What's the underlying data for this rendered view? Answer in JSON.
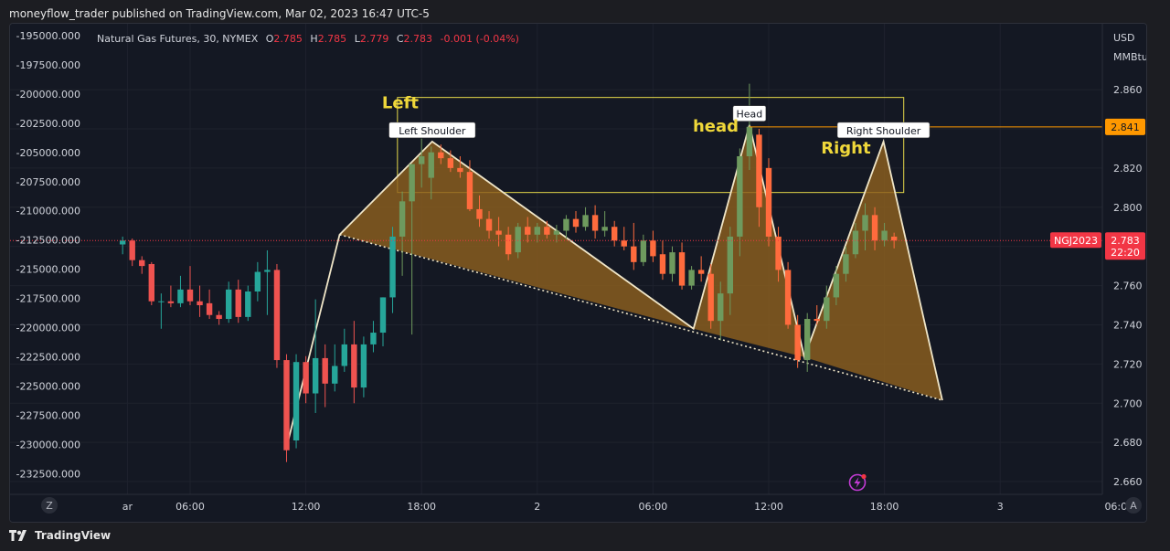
{
  "header": {
    "published": "moneyflow_trader published on TradingView.com, Mar 02, 2023 16:47 UTC-5"
  },
  "footer": {
    "brand": "TradingView",
    "brand_icon": "tradingview-logo-icon"
  },
  "legend": {
    "symbol": "Natural Gas Futures, 30, NYMEX",
    "O_label": "O",
    "O": "2.785",
    "H_label": "H",
    "H": "2.785",
    "L_label": "L",
    "L": "2.779",
    "C_label": "C",
    "C": "2.783",
    "change": "-0.001 (-0.04%)"
  },
  "chart_data": {
    "type": "candlestick",
    "right_axis": {
      "currency": "USD",
      "unit": "MMBtu",
      "ticks": [
        "2.860",
        "2.840",
        "2.820",
        "2.800",
        "2.780",
        "2.760",
        "2.740",
        "2.720",
        "2.700",
        "2.680",
        "2.660"
      ],
      "range": [
        2.6535,
        2.8936
      ]
    },
    "left_axis": {
      "ticks": [
        "-195000.000",
        "-197500.000",
        "-200000.000",
        "-202500.000",
        "-205000.000",
        "-207500.000",
        "-210000.000",
        "-212500.000",
        "-215000.000",
        "-217500.000",
        "-220000.000",
        "-222500.000",
        "-225000.000",
        "-227500.000",
        "-230000.000",
        "-232500.000"
      ]
    },
    "x_axis": {
      "ticks": [
        {
          "label": "ar",
          "t": -3.25
        },
        {
          "label": "06:00",
          "t": 0
        },
        {
          "label": "12:00",
          "t": 6
        },
        {
          "label": "18:00",
          "t": 12
        },
        {
          "label": "2",
          "t": 18
        },
        {
          "label": "06:00",
          "t": 24
        },
        {
          "label": "12:00",
          "t": 30
        },
        {
          "label": "18:00",
          "t": 36
        },
        {
          "label": "3",
          "t": 42
        },
        {
          "label": "06:0",
          "t": 48
        }
      ]
    },
    "candles": [
      {
        "t": -3.5,
        "o": 2.781,
        "h": 2.785,
        "l": 2.776,
        "c": 2.783
      },
      {
        "t": -3.0,
        "o": 2.783,
        "h": 2.784,
        "l": 2.77,
        "c": 2.773
      },
      {
        "t": -2.5,
        "o": 2.773,
        "h": 2.775,
        "l": 2.766,
        "c": 2.77
      },
      {
        "t": -2.0,
        "o": 2.771,
        "h": 2.772,
        "l": 2.75,
        "c": 2.752
      },
      {
        "t": -1.5,
        "o": 2.752,
        "h": 2.756,
        "l": 2.738,
        "c": 2.752
      },
      {
        "t": -1.0,
        "o": 2.752,
        "h": 2.76,
        "l": 2.749,
        "c": 2.751
      },
      {
        "t": -0.5,
        "o": 2.751,
        "h": 2.765,
        "l": 2.749,
        "c": 2.758
      },
      {
        "t": 0.0,
        "o": 2.758,
        "h": 2.77,
        "l": 2.75,
        "c": 2.752
      },
      {
        "t": 0.5,
        "o": 2.752,
        "h": 2.76,
        "l": 2.744,
        "c": 2.75
      },
      {
        "t": 1.0,
        "o": 2.751,
        "h": 2.758,
        "l": 2.743,
        "c": 2.745
      },
      {
        "t": 1.5,
        "o": 2.745,
        "h": 2.747,
        "l": 2.74,
        "c": 2.743
      },
      {
        "t": 2.0,
        "o": 2.743,
        "h": 2.762,
        "l": 2.741,
        "c": 2.758
      },
      {
        "t": 2.5,
        "o": 2.758,
        "h": 2.763,
        "l": 2.741,
        "c": 2.744
      },
      {
        "t": 3.0,
        "o": 2.744,
        "h": 2.76,
        "l": 2.742,
        "c": 2.757
      },
      {
        "t": 3.5,
        "o": 2.757,
        "h": 2.772,
        "l": 2.752,
        "c": 2.767
      },
      {
        "t": 4.0,
        "o": 2.767,
        "h": 2.778,
        "l": 2.745,
        "c": 2.768
      },
      {
        "t": 4.5,
        "o": 2.768,
        "h": 2.771,
        "l": 2.718,
        "c": 2.722
      },
      {
        "t": 5.0,
        "o": 2.722,
        "h": 2.725,
        "l": 2.67,
        "c": 2.676
      },
      {
        "t": 5.5,
        "o": 2.681,
        "h": 2.725,
        "l": 2.677,
        "c": 2.721
      },
      {
        "t": 6.0,
        "o": 2.721,
        "h": 2.724,
        "l": 2.7,
        "c": 2.705
      },
      {
        "t": 6.5,
        "o": 2.705,
        "h": 2.753,
        "l": 2.695,
        "c": 2.723
      },
      {
        "t": 7.0,
        "o": 2.723,
        "h": 2.73,
        "l": 2.698,
        "c": 2.71
      },
      {
        "t": 7.5,
        "o": 2.71,
        "h": 2.73,
        "l": 2.706,
        "c": 2.719
      },
      {
        "t": 8.0,
        "o": 2.719,
        "h": 2.738,
        "l": 2.716,
        "c": 2.73
      },
      {
        "t": 8.5,
        "o": 2.73,
        "h": 2.742,
        "l": 2.7,
        "c": 2.708
      },
      {
        "t": 9.0,
        "o": 2.708,
        "h": 2.734,
        "l": 2.703,
        "c": 2.73
      },
      {
        "t": 9.5,
        "o": 2.73,
        "h": 2.742,
        "l": 2.726,
        "c": 2.736
      },
      {
        "t": 10.0,
        "o": 2.736,
        "h": 2.754,
        "l": 2.729,
        "c": 2.754
      },
      {
        "t": 10.5,
        "o": 2.754,
        "h": 2.79,
        "l": 2.746,
        "c": 2.785
      },
      {
        "t": 11.0,
        "o": 2.785,
        "h": 2.808,
        "l": 2.765,
        "c": 2.803
      },
      {
        "t": 11.5,
        "o": 2.803,
        "h": 2.822,
        "l": 2.735,
        "c": 2.822
      },
      {
        "t": 12.0,
        "o": 2.822,
        "h": 2.835,
        "l": 2.81,
        "c": 2.826
      },
      {
        "t": 12.5,
        "o": 2.815,
        "h": 2.831,
        "l": 2.804,
        "c": 2.828
      },
      {
        "t": 13.0,
        "o": 2.828,
        "h": 2.832,
        "l": 2.822,
        "c": 2.825
      },
      {
        "t": 13.5,
        "o": 2.825,
        "h": 2.829,
        "l": 2.818,
        "c": 2.82
      },
      {
        "t": 14.0,
        "o": 2.82,
        "h": 2.826,
        "l": 2.815,
        "c": 2.818
      },
      {
        "t": 14.5,
        "o": 2.818,
        "h": 2.824,
        "l": 2.798,
        "c": 2.799
      },
      {
        "t": 15.0,
        "o": 2.799,
        "h": 2.806,
        "l": 2.79,
        "c": 2.794
      },
      {
        "t": 15.5,
        "o": 2.794,
        "h": 2.798,
        "l": 2.784,
        "c": 2.788
      },
      {
        "t": 16.0,
        "o": 2.788,
        "h": 2.795,
        "l": 2.78,
        "c": 2.786
      },
      {
        "t": 16.5,
        "o": 2.786,
        "h": 2.79,
        "l": 2.773,
        "c": 2.776
      },
      {
        "t": 17.0,
        "o": 2.777,
        "h": 2.792,
        "l": 2.774,
        "c": 2.79
      },
      {
        "t": 17.5,
        "o": 2.79,
        "h": 2.795,
        "l": 2.782,
        "c": 2.786
      },
      {
        "t": 18.0,
        "o": 2.786,
        "h": 2.792,
        "l": 2.782,
        "c": 2.79
      },
      {
        "t": 18.5,
        "o": 2.79,
        "h": 2.793,
        "l": 2.784,
        "c": 2.786
      },
      {
        "t": 19.0,
        "o": 2.786,
        "h": 2.791,
        "l": 2.782,
        "c": 2.788
      },
      {
        "t": 19.5,
        "o": 2.788,
        "h": 2.796,
        "l": 2.784,
        "c": 2.794
      },
      {
        "t": 20.0,
        "o": 2.794,
        "h": 2.798,
        "l": 2.787,
        "c": 2.79
      },
      {
        "t": 20.5,
        "o": 2.79,
        "h": 2.8,
        "l": 2.788,
        "c": 2.796
      },
      {
        "t": 21.0,
        "o": 2.796,
        "h": 2.801,
        "l": 2.784,
        "c": 2.788
      },
      {
        "t": 21.5,
        "o": 2.788,
        "h": 2.798,
        "l": 2.785,
        "c": 2.79
      },
      {
        "t": 22.0,
        "o": 2.79,
        "h": 2.793,
        "l": 2.78,
        "c": 2.783
      },
      {
        "t": 22.5,
        "o": 2.783,
        "h": 2.79,
        "l": 2.778,
        "c": 2.78
      },
      {
        "t": 23.0,
        "o": 2.78,
        "h": 2.792,
        "l": 2.768,
        "c": 2.772
      },
      {
        "t": 23.5,
        "o": 2.772,
        "h": 2.786,
        "l": 2.77,
        "c": 2.783
      },
      {
        "t": 24.0,
        "o": 2.783,
        "h": 2.788,
        "l": 2.772,
        "c": 2.775
      },
      {
        "t": 24.5,
        "o": 2.776,
        "h": 2.783,
        "l": 2.763,
        "c": 2.766
      },
      {
        "t": 25.0,
        "o": 2.766,
        "h": 2.78,
        "l": 2.762,
        "c": 2.777
      },
      {
        "t": 25.5,
        "o": 2.777,
        "h": 2.782,
        "l": 2.758,
        "c": 2.76
      },
      {
        "t": 26.0,
        "o": 2.76,
        "h": 2.77,
        "l": 2.758,
        "c": 2.768
      },
      {
        "t": 26.5,
        "o": 2.768,
        "h": 2.775,
        "l": 2.762,
        "c": 2.766
      },
      {
        "t": 27.0,
        "o": 2.766,
        "h": 2.771,
        "l": 2.738,
        "c": 2.742
      },
      {
        "t": 27.5,
        "o": 2.742,
        "h": 2.762,
        "l": 2.732,
        "c": 2.756
      },
      {
        "t": 28.0,
        "o": 2.756,
        "h": 2.79,
        "l": 2.745,
        "c": 2.785
      },
      {
        "t": 28.5,
        "o": 2.785,
        "h": 2.83,
        "l": 2.775,
        "c": 2.826
      },
      {
        "t": 29.0,
        "o": 2.826,
        "h": 2.863,
        "l": 2.819,
        "c": 2.841
      },
      {
        "t": 29.5,
        "o": 2.837,
        "h": 2.84,
        "l": 2.79,
        "c": 2.8
      },
      {
        "t": 30.0,
        "o": 2.82,
        "h": 2.825,
        "l": 2.78,
        "c": 2.785
      },
      {
        "t": 30.5,
        "o": 2.785,
        "h": 2.79,
        "l": 2.762,
        "c": 2.768
      },
      {
        "t": 31.0,
        "o": 2.768,
        "h": 2.772,
        "l": 2.738,
        "c": 2.74
      },
      {
        "t": 31.5,
        "o": 2.74,
        "h": 2.745,
        "l": 2.718,
        "c": 2.722
      },
      {
        "t": 32.0,
        "o": 2.722,
        "h": 2.746,
        "l": 2.716,
        "c": 2.743
      },
      {
        "t": 32.5,
        "o": 2.743,
        "h": 2.75,
        "l": 2.74,
        "c": 2.742
      },
      {
        "t": 33.0,
        "o": 2.742,
        "h": 2.76,
        "l": 2.738,
        "c": 2.754
      },
      {
        "t": 33.5,
        "o": 2.754,
        "h": 2.77,
        "l": 2.75,
        "c": 2.766
      },
      {
        "t": 34.0,
        "o": 2.766,
        "h": 2.78,
        "l": 2.762,
        "c": 2.776
      },
      {
        "t": 34.5,
        "o": 2.776,
        "h": 2.792,
        "l": 2.774,
        "c": 2.788
      },
      {
        "t": 35.0,
        "o": 2.788,
        "h": 2.802,
        "l": 2.778,
        "c": 2.796
      },
      {
        "t": 35.5,
        "o": 2.796,
        "h": 2.8,
        "l": 2.778,
        "c": 2.783
      },
      {
        "t": 36.0,
        "o": 2.783,
        "h": 2.792,
        "l": 2.78,
        "c": 2.788
      },
      {
        "t": 36.5,
        "o": 2.785,
        "h": 2.787,
        "l": 2.779,
        "c": 2.783
      }
    ],
    "price_line": {
      "value": 2.783,
      "label": "2.783",
      "countdown": "22:20",
      "symbol_tag": "NGJ2023"
    },
    "level_line": {
      "value": 2.841,
      "label": "2.841"
    },
    "highlight_box": {
      "t1": 10.75,
      "t2": 37.0,
      "p1": 2.856,
      "p2": 2.8075
    },
    "pattern": {
      "points": [
        {
          "t": 5.0,
          "p": 2.6775
        },
        {
          "t": 7.75,
          "p": 2.786
        },
        {
          "t": 12.55,
          "p": 2.8335
        },
        {
          "t": 26.1,
          "p": 2.738
        },
        {
          "t": 29.0,
          "p": 2.842
        },
        {
          "t": 31.85,
          "p": 2.7235
        },
        {
          "t": 35.95,
          "p": 2.8335
        },
        {
          "t": 39.0,
          "p": 2.7015
        }
      ],
      "neckline": [
        {
          "t": 7.75,
          "p": 2.786
        },
        {
          "t": 39.0,
          "p": 2.7015
        }
      ]
    },
    "labels": [
      {
        "id": "left-shoulder",
        "text": "Left Shoulder",
        "t": 12.55,
        "p": 2.8335,
        "style": "box"
      },
      {
        "id": "head",
        "text": "Head",
        "t": 29.0,
        "p": 2.842,
        "style": "box"
      },
      {
        "id": "right-shoulder",
        "text": "Right Shoulder",
        "t": 35.95,
        "p": 2.8335,
        "style": "box"
      },
      {
        "id": "left",
        "text": "Left",
        "t": 10.9,
        "p": 2.8505,
        "style": "yellow"
      },
      {
        "id": "head-lower",
        "text": "head",
        "t": 27.25,
        "p": 2.8385,
        "style": "yellow"
      },
      {
        "id": "right",
        "text": "Right",
        "t": 34.0,
        "p": 2.8275,
        "style": "yellow"
      }
    ],
    "bottom_icons": {
      "left": "Z",
      "right": "A",
      "alert_icon": "lightning-alert-icon"
    },
    "colors": {
      "up": "#26a69a",
      "down": "#ef5350",
      "up_faded": "#6e9a5e",
      "down_faded": "#ff6b3d",
      "pattern_fill": "#8c5f1e",
      "pattern_line": "#f0e6c8",
      "box": "#e6d94a",
      "level": "#ff9800",
      "price_tag": "#f23645",
      "yellow_text": "#f0d83a"
    }
  }
}
